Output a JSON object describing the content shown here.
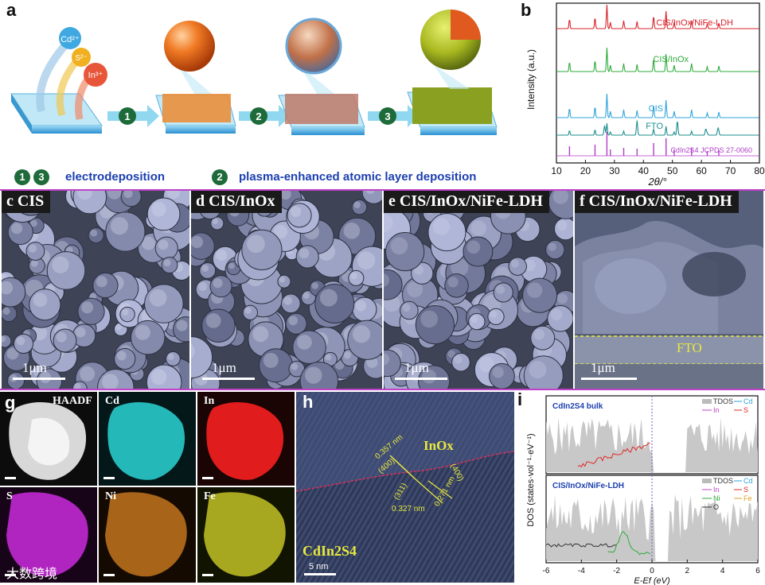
{
  "panels": {
    "a": "a",
    "b": "b",
    "c": "c",
    "d": "d",
    "e": "e",
    "f": "f",
    "g": "g",
    "h": "h",
    "i": "i"
  },
  "schematic": {
    "ions": [
      "Cd²⁺",
      "S²⁻",
      "In³⁺"
    ],
    "steps": [
      "1",
      "2",
      "3"
    ],
    "legend_steps_a": [
      "1",
      "3"
    ],
    "legend_a": "electrodeposition",
    "legend_step_b": "2",
    "legend_b": "plasma-enhanced atomic layer deposition"
  },
  "xrd": {
    "ylabel": "Intensity (a.u.)",
    "xlabel": "2θ/°",
    "xticks": [
      "10",
      "20",
      "30",
      "40",
      "50",
      "60",
      "70",
      "80"
    ],
    "traces": [
      {
        "label": "CIS/InOx/NiFe-LDH",
        "color": "#d9232a"
      },
      {
        "label": "CIS/InOx",
        "color": "#2eac3a"
      },
      {
        "label": "CIS",
        "color": "#2ea4d8"
      },
      {
        "label": "FTO",
        "color": "#1e8f8f"
      },
      {
        "label": "CdIn2S4 JCPDS 27-0060",
        "color": "#b03cc8"
      }
    ]
  },
  "sem": {
    "c": {
      "title": "CIS",
      "scale": "1μm"
    },
    "d": {
      "title": "CIS/InOx",
      "scale": "1μm"
    },
    "e": {
      "title": "CIS/InOx/NiFe-LDH",
      "scale": "1μm"
    },
    "f": {
      "title": "CIS/InOx/NiFe-LDH",
      "scale": "1μm",
      "fto": "FTO"
    }
  },
  "eds": [
    "HAADF",
    "Cd",
    "In",
    "S",
    "Ni",
    "Fe"
  ],
  "hrtem": {
    "inox": "InOx",
    "cis": "CdIn2S4",
    "d1": "0.357 nm",
    "p1": "(400)",
    "d2": "0.327 nm",
    "p2": "(311)",
    "d3": "0.271 nm",
    "p3": "(400)",
    "scale": "5 nm"
  },
  "dos": {
    "top_title": "CdIn2S4 bulk",
    "bottom_title": "CIS/InOx/NiFe-LDH",
    "ylabel": "DOS (states·vol⁻¹·eV⁻¹)",
    "xlabel": "E-Ef (eV)",
    "xticks": [
      "-6",
      "-4",
      "-2",
      "0",
      "2",
      "4",
      "6"
    ],
    "top_legend": [
      "TDOS",
      "Cd",
      "In",
      "S"
    ],
    "bottom_legend": [
      "TDOS",
      "Cd",
      "In",
      "S",
      "Ni",
      "Fe",
      "O"
    ]
  },
  "watermark": "大数跨境"
}
